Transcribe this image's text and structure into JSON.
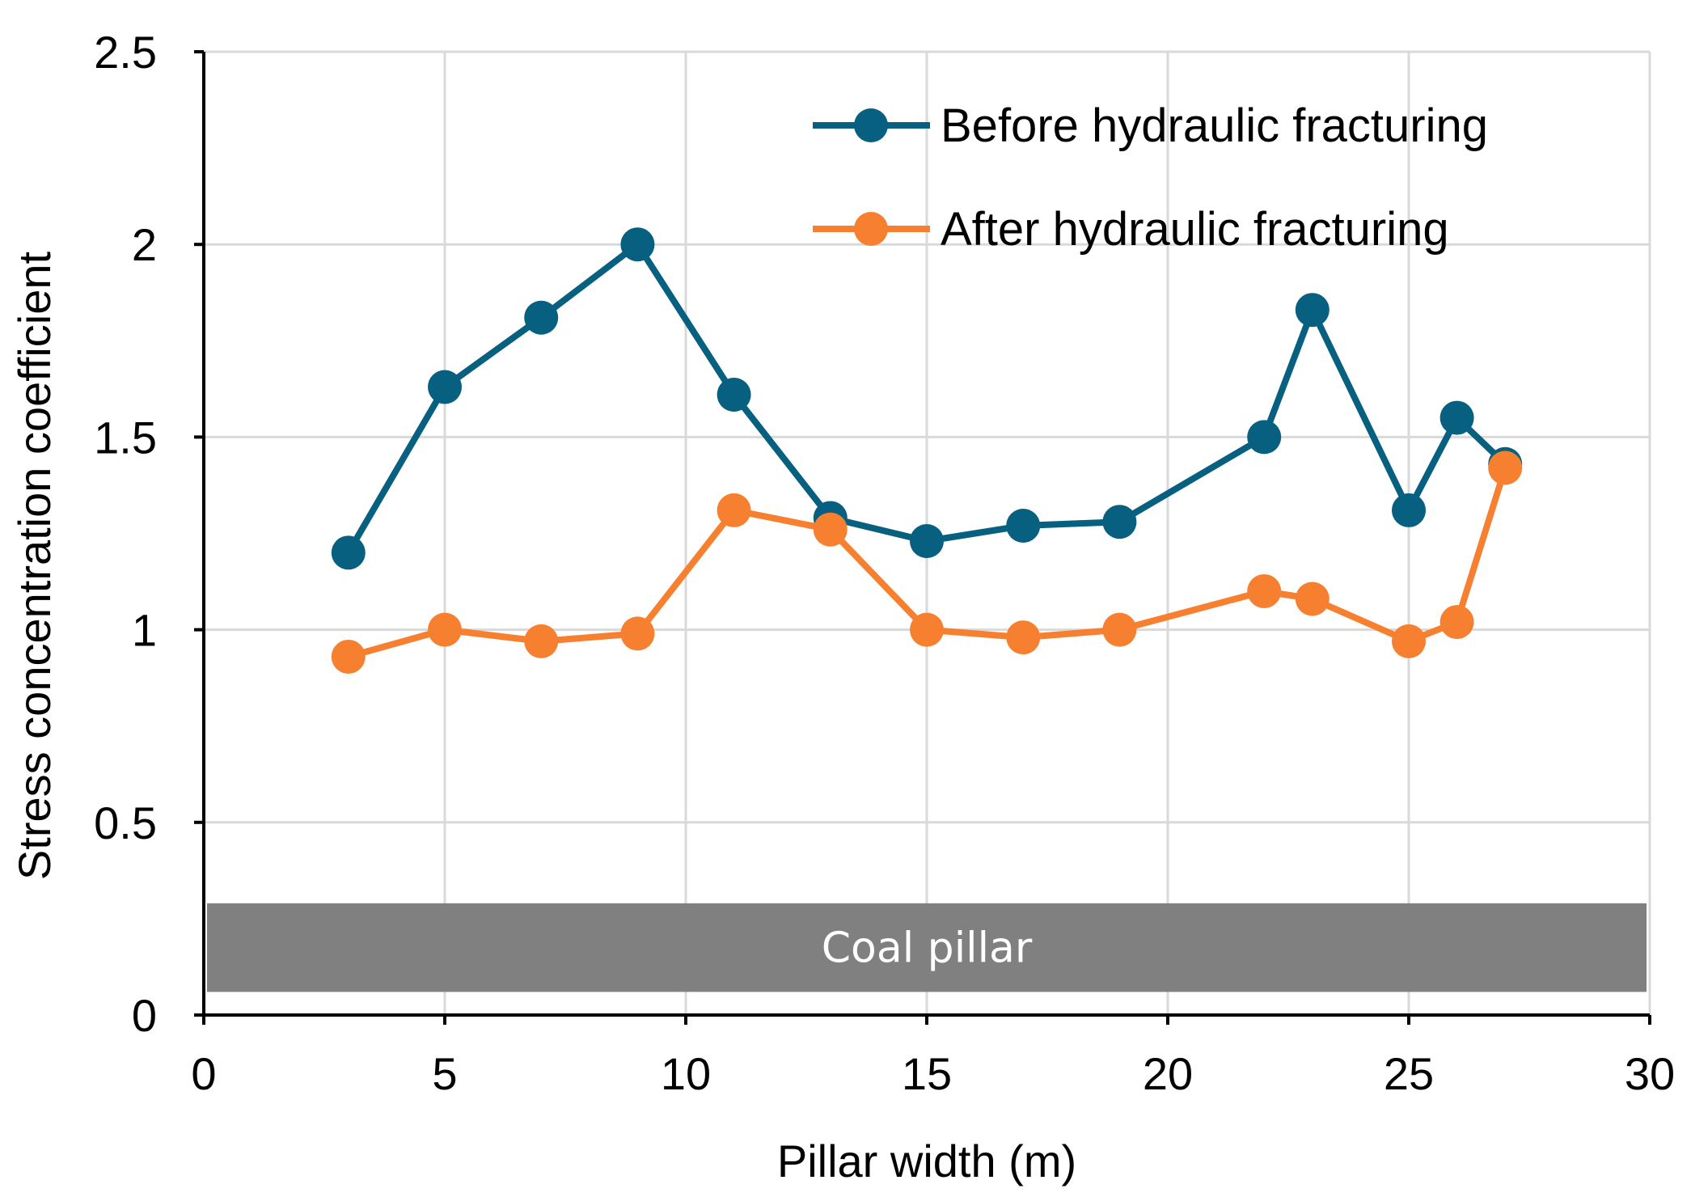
{
  "chart_data": {
    "type": "line",
    "title": "",
    "xlabel": "Pillar width (m)",
    "ylabel": "Stress concentration coefficient",
    "xlim": [
      0,
      30
    ],
    "ylim": [
      0,
      2.5
    ],
    "x_ticks": [
      0,
      5,
      10,
      15,
      20,
      25,
      30
    ],
    "y_ticks": [
      0,
      0.5,
      1,
      1.5,
      2,
      2.5
    ],
    "grid": true,
    "legend_position": "top-right",
    "band": {
      "label": "Coal pillar",
      "y_range": [
        0.06,
        0.29
      ],
      "color": "#808080"
    },
    "series": [
      {
        "name": "Before hydraulic fracturing",
        "color": "#07607f",
        "points": [
          {
            "x": 3,
            "y": 1.2
          },
          {
            "x": 5,
            "y": 1.63
          },
          {
            "x": 7,
            "y": 1.81
          },
          {
            "x": 9,
            "y": 2.0
          },
          {
            "x": 11,
            "y": 1.61
          },
          {
            "x": 13,
            "y": 1.29
          },
          {
            "x": 15,
            "y": 1.23
          },
          {
            "x": 17,
            "y": 1.27
          },
          {
            "x": 19,
            "y": 1.28
          },
          {
            "x": 22,
            "y": 1.5
          },
          {
            "x": 23,
            "y": 1.83
          },
          {
            "x": 25,
            "y": 1.31
          },
          {
            "x": 26,
            "y": 1.55
          },
          {
            "x": 27,
            "y": 1.43
          }
        ]
      },
      {
        "name": "After hydraulic fracturing",
        "color": "#f77f30",
        "points": [
          {
            "x": 3,
            "y": 0.93
          },
          {
            "x": 5,
            "y": 1.0
          },
          {
            "x": 7,
            "y": 0.97
          },
          {
            "x": 9,
            "y": 0.99
          },
          {
            "x": 11,
            "y": 1.31
          },
          {
            "x": 13,
            "y": 1.26
          },
          {
            "x": 15,
            "y": 1.0
          },
          {
            "x": 17,
            "y": 0.98
          },
          {
            "x": 19,
            "y": 1.0
          },
          {
            "x": 22,
            "y": 1.1
          },
          {
            "x": 23,
            "y": 1.08
          },
          {
            "x": 25,
            "y": 0.97
          },
          {
            "x": 26,
            "y": 1.02
          },
          {
            "x": 27,
            "y": 1.42
          }
        ]
      }
    ]
  }
}
